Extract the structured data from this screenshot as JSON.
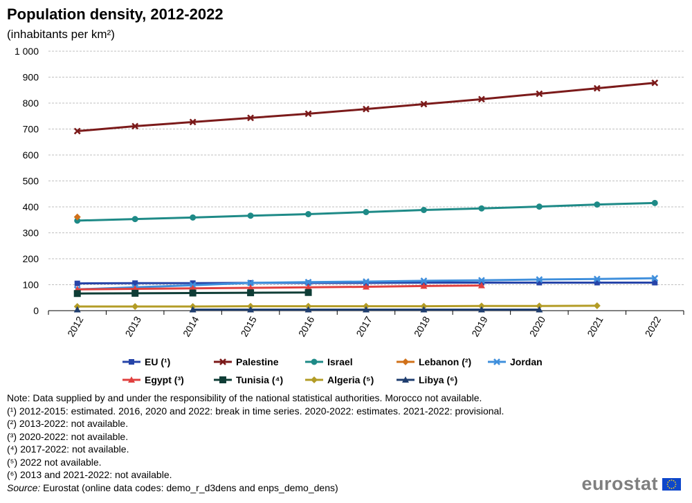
{
  "title": "Population density, 2012-2022",
  "subtitle": "(inhabitants per km²)",
  "chart_data": {
    "type": "line",
    "title": "Population density, 2012-2022",
    "subtitle": "(inhabitants per km²)",
    "x": [
      "2012",
      "2013",
      "2014",
      "2015",
      "2016",
      "2017",
      "2018",
      "2019",
      "2020",
      "2021",
      "2022"
    ],
    "ylim": [
      0,
      1000
    ],
    "yticks": [
      0,
      100,
      200,
      300,
      400,
      500,
      600,
      700,
      800,
      900,
      1000
    ],
    "ytick_labels": [
      "0",
      "100",
      "200",
      "300",
      "400",
      "500",
      "600",
      "700",
      "800",
      "900",
      "1 000"
    ],
    "grid": "horizontal dashed",
    "legend_position": "bottom",
    "series": [
      {
        "name": "EU (¹)",
        "color": "#2644a8",
        "marker": "square",
        "values": [
          105,
          106,
          106,
          107,
          107,
          107,
          108,
          108,
          108,
          108,
          108
        ]
      },
      {
        "name": "Palestine",
        "color": "#7b1a1a",
        "marker": "x",
        "values": [
          692,
          711,
          727,
          743,
          759,
          777,
          796,
          815,
          836,
          857,
          878
        ]
      },
      {
        "name": "Israel",
        "color": "#1e8a87",
        "marker": "circle",
        "values": [
          347,
          353,
          359,
          366,
          372,
          380,
          388,
          394,
          401,
          409,
          415
        ]
      },
      {
        "name": "Lebanon (²)",
        "color": "#d0711a",
        "marker": "diamond",
        "values": [
          361,
          null,
          null,
          null,
          null,
          null,
          null,
          null,
          null,
          null,
          null
        ]
      },
      {
        "name": "Jordan",
        "color": "#3f8fdc",
        "marker": "x",
        "values": [
          82,
          90,
          98,
          107,
          110,
          112,
          115,
          117,
          120,
          122,
          125
        ]
      },
      {
        "name": "Egypt (³)",
        "color": "#e0403f",
        "marker": "triangle",
        "values": [
          82,
          84,
          86,
          88,
          90,
          92,
          95,
          97,
          null,
          null,
          null
        ]
      },
      {
        "name": "Tunisia (⁴)",
        "color": "#0f3d36",
        "marker": "square-large",
        "values": [
          66,
          67,
          68,
          69,
          70,
          null,
          null,
          null,
          null,
          null,
          null
        ]
      },
      {
        "name": "Algeria (⁵)",
        "color": "#b39c26",
        "marker": "diamond",
        "values": [
          16,
          16,
          16,
          17,
          17,
          17,
          17,
          18,
          18,
          19,
          null
        ]
      },
      {
        "name": "Libya (⁶)",
        "color": "#1f3e6f",
        "marker": "triangle",
        "values": [
          4,
          null,
          4,
          4,
          4,
          4,
          4,
          4,
          4,
          null,
          null
        ]
      }
    ]
  },
  "legend_rows": [
    [
      0,
      1,
      2,
      3,
      4
    ],
    [
      5,
      6,
      7,
      8
    ]
  ],
  "notes": [
    "Note: Data supplied by and under the responsibility of the national statistical authorities. Morocco not available.",
    "(¹) 2012-2015: estimated. 2016, 2020 and 2022: break in time series. 2020-2022: estimates. 2021-2022: provisional.",
    "(²) 2013-2022: not available.",
    "(³) 2020-2022: not available.",
    "(⁴) 2017-2022: not available.",
    "(⁵) 2022 not available.",
    "(⁶) 2013 and 2021-2022: not available."
  ],
  "source": {
    "label": "Source:",
    "text": " Eurostat (online data codes: demo_r_d3dens and enps_demo_dens)"
  },
  "logo": {
    "text": "eurostat",
    "flag_color": "#0e47cb",
    "star_color": "#ffd617"
  }
}
